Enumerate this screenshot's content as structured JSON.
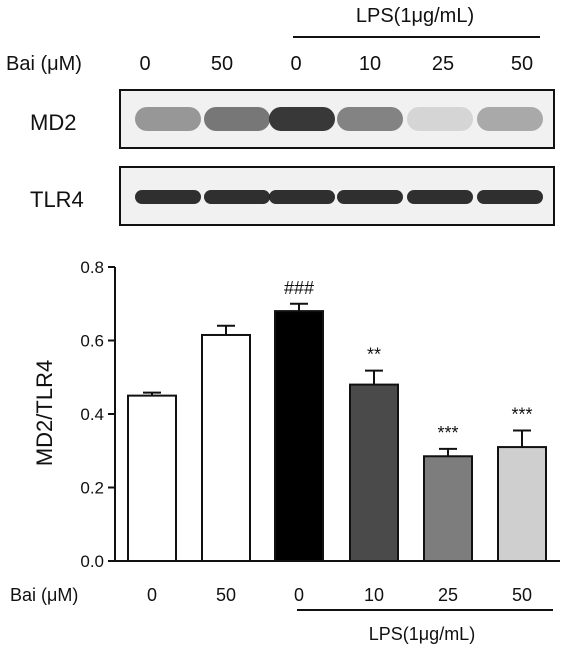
{
  "blot": {
    "lps_label": "LPS(1μg/mL)",
    "bai_label": "Bai (μM)",
    "lane_doses": [
      "0",
      "50",
      "0",
      "10",
      "25",
      "50"
    ],
    "rows": [
      {
        "label": "MD2",
        "intensity": [
          0.45,
          0.62,
          0.95,
          0.55,
          0.12,
          0.35
        ]
      },
      {
        "label": "TLR4",
        "intensity": [
          1.0,
          1.0,
          1.0,
          1.0,
          1.0,
          1.0
        ]
      }
    ]
  },
  "chart_data": {
    "type": "bar",
    "title": "",
    "xlabel": "Bai (μM)",
    "ylabel": "MD2/TLR4",
    "ylim": [
      0.0,
      0.8
    ],
    "yticks": [
      "0.0",
      "0.2",
      "0.4",
      "0.6",
      "0.8"
    ],
    "categories": [
      "0",
      "50",
      "0",
      "10",
      "25",
      "50"
    ],
    "values": [
      0.45,
      0.615,
      0.68,
      0.48,
      0.285,
      0.31
    ],
    "errors": [
      0.008,
      0.025,
      0.02,
      0.038,
      0.02,
      0.045
    ],
    "colors": [
      "#ffffff",
      "#ffffff",
      "#000000",
      "#4a4a4a",
      "#7d7d7d",
      "#cfcfcf"
    ],
    "annotations": [
      "",
      "",
      "###",
      "**",
      "***",
      "***"
    ],
    "group_label": "LPS(1μg/mL)"
  }
}
